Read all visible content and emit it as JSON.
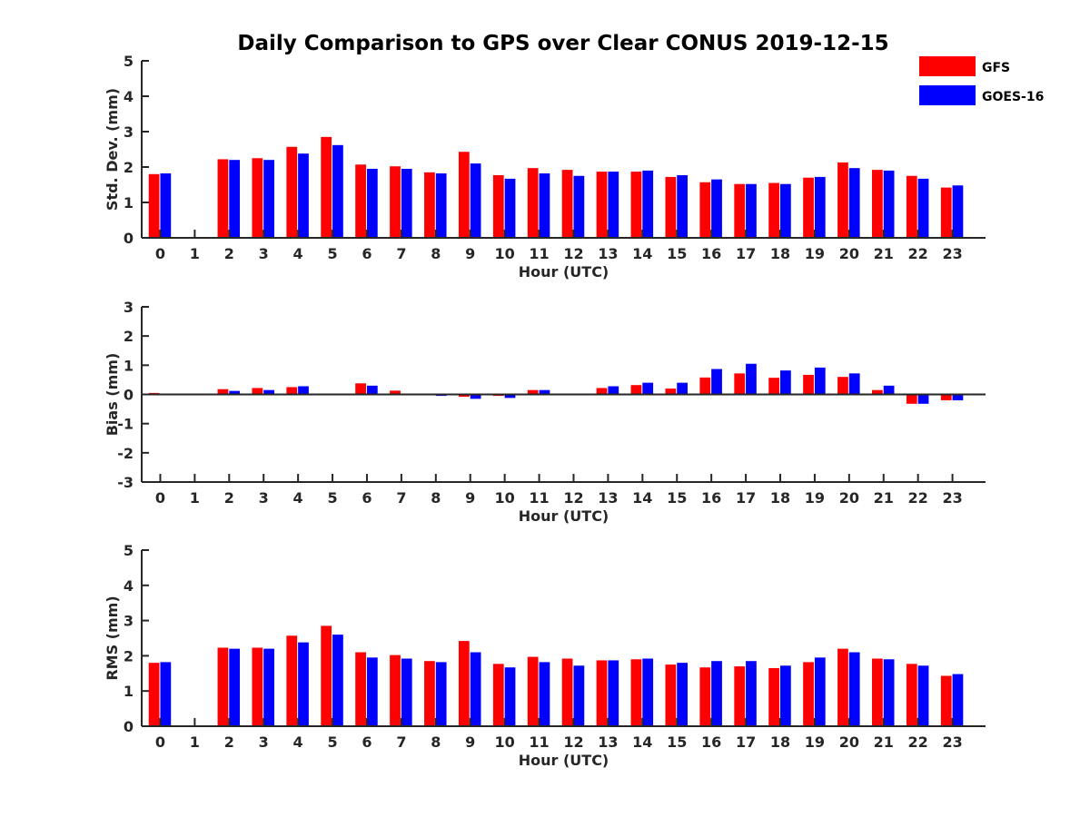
{
  "chart_data": {
    "title": "Daily Comparison to GPS over Clear CONUS 2019-12-15",
    "legend": {
      "placement": "top-right",
      "entries": [
        {
          "name": "GFS",
          "color": "#ff0000"
        },
        {
          "name": "GOES-16",
          "color": "#0000ff"
        }
      ]
    },
    "panels": [
      {
        "type": "bar",
        "xlabel": "Hour (UTC)",
        "ylabel": "Std. Dev. (mm)",
        "ylim": [
          0,
          5
        ],
        "yticks": [
          0,
          1,
          2,
          3,
          4,
          5
        ],
        "categories": [
          "0",
          "1",
          "2",
          "3",
          "4",
          "5",
          "6",
          "7",
          "8",
          "9",
          "10",
          "11",
          "12",
          "13",
          "14",
          "15",
          "16",
          "17",
          "18",
          "19",
          "20",
          "21",
          "22",
          "23"
        ],
        "series": [
          {
            "name": "GFS",
            "color": "#ff0000",
            "values": [
              1.8,
              null,
              2.22,
              2.25,
              2.57,
              2.85,
              2.07,
              2.02,
              1.85,
              2.43,
              1.77,
              1.97,
              1.92,
              1.87,
              1.87,
              1.72,
              1.57,
              1.52,
              1.55,
              1.7,
              2.13,
              1.92,
              1.75,
              1.42
            ]
          },
          {
            "name": "GOES-16",
            "color": "#0000ff",
            "values": [
              1.82,
              null,
              2.2,
              2.2,
              2.38,
              2.62,
              1.95,
              1.95,
              1.82,
              2.1,
              1.67,
              1.82,
              1.75,
              1.87,
              1.9,
              1.77,
              1.65,
              1.52,
              1.52,
              1.72,
              1.97,
              1.9,
              1.67,
              1.48
            ]
          }
        ]
      },
      {
        "type": "bar",
        "xlabel": "Hour (UTC)",
        "ylabel": "Bias (mm)",
        "ylim": [
          -3,
          3
        ],
        "yticks": [
          -3,
          -2,
          -1,
          0,
          1,
          2,
          3
        ],
        "categories": [
          "0",
          "1",
          "2",
          "3",
          "4",
          "5",
          "6",
          "7",
          "8",
          "9",
          "10",
          "11",
          "12",
          "13",
          "14",
          "15",
          "16",
          "17",
          "18",
          "19",
          "20",
          "21",
          "22",
          "23"
        ],
        "series": [
          {
            "name": "GFS",
            "color": "#ff0000",
            "values": [
              0.05,
              null,
              0.18,
              0.22,
              0.25,
              null,
              0.38,
              0.13,
              -0.03,
              -0.08,
              -0.05,
              0.15,
              null,
              0.22,
              0.32,
              0.2,
              0.58,
              0.72,
              0.57,
              0.67,
              0.6,
              0.15,
              -0.32,
              -0.2
            ]
          },
          {
            "name": "GOES-16",
            "color": "#0000ff",
            "values": [
              0.01,
              null,
              0.12,
              0.15,
              0.28,
              null,
              0.3,
              0.03,
              -0.05,
              -0.15,
              -0.12,
              0.15,
              null,
              0.28,
              0.4,
              0.4,
              0.87,
              1.05,
              0.82,
              0.92,
              0.72,
              0.3,
              -0.32,
              -0.2
            ]
          }
        ]
      },
      {
        "type": "bar",
        "xlabel": "Hour (UTC)",
        "ylabel": "RMS (mm)",
        "ylim": [
          0,
          5
        ],
        "yticks": [
          0,
          1,
          2,
          3,
          4,
          5
        ],
        "categories": [
          "0",
          "1",
          "2",
          "3",
          "4",
          "5",
          "6",
          "7",
          "8",
          "9",
          "10",
          "11",
          "12",
          "13",
          "14",
          "15",
          "16",
          "17",
          "18",
          "19",
          "20",
          "21",
          "22",
          "23"
        ],
        "series": [
          {
            "name": "GFS",
            "color": "#ff0000",
            "values": [
              1.8,
              null,
              2.23,
              2.23,
              2.57,
              2.85,
              2.1,
              2.02,
              1.85,
              2.42,
              1.77,
              1.97,
              1.92,
              1.87,
              1.9,
              1.75,
              1.67,
              1.7,
              1.65,
              1.82,
              2.2,
              1.92,
              1.77,
              1.43
            ]
          },
          {
            "name": "GOES-16",
            "color": "#0000ff",
            "values": [
              1.82,
              null,
              2.2,
              2.2,
              2.38,
              2.6,
              1.95,
              1.92,
              1.82,
              2.1,
              1.67,
              1.82,
              1.72,
              1.87,
              1.92,
              1.8,
              1.85,
              1.85,
              1.72,
              1.95,
              2.1,
              1.9,
              1.72,
              1.48
            ]
          }
        ]
      }
    ]
  }
}
